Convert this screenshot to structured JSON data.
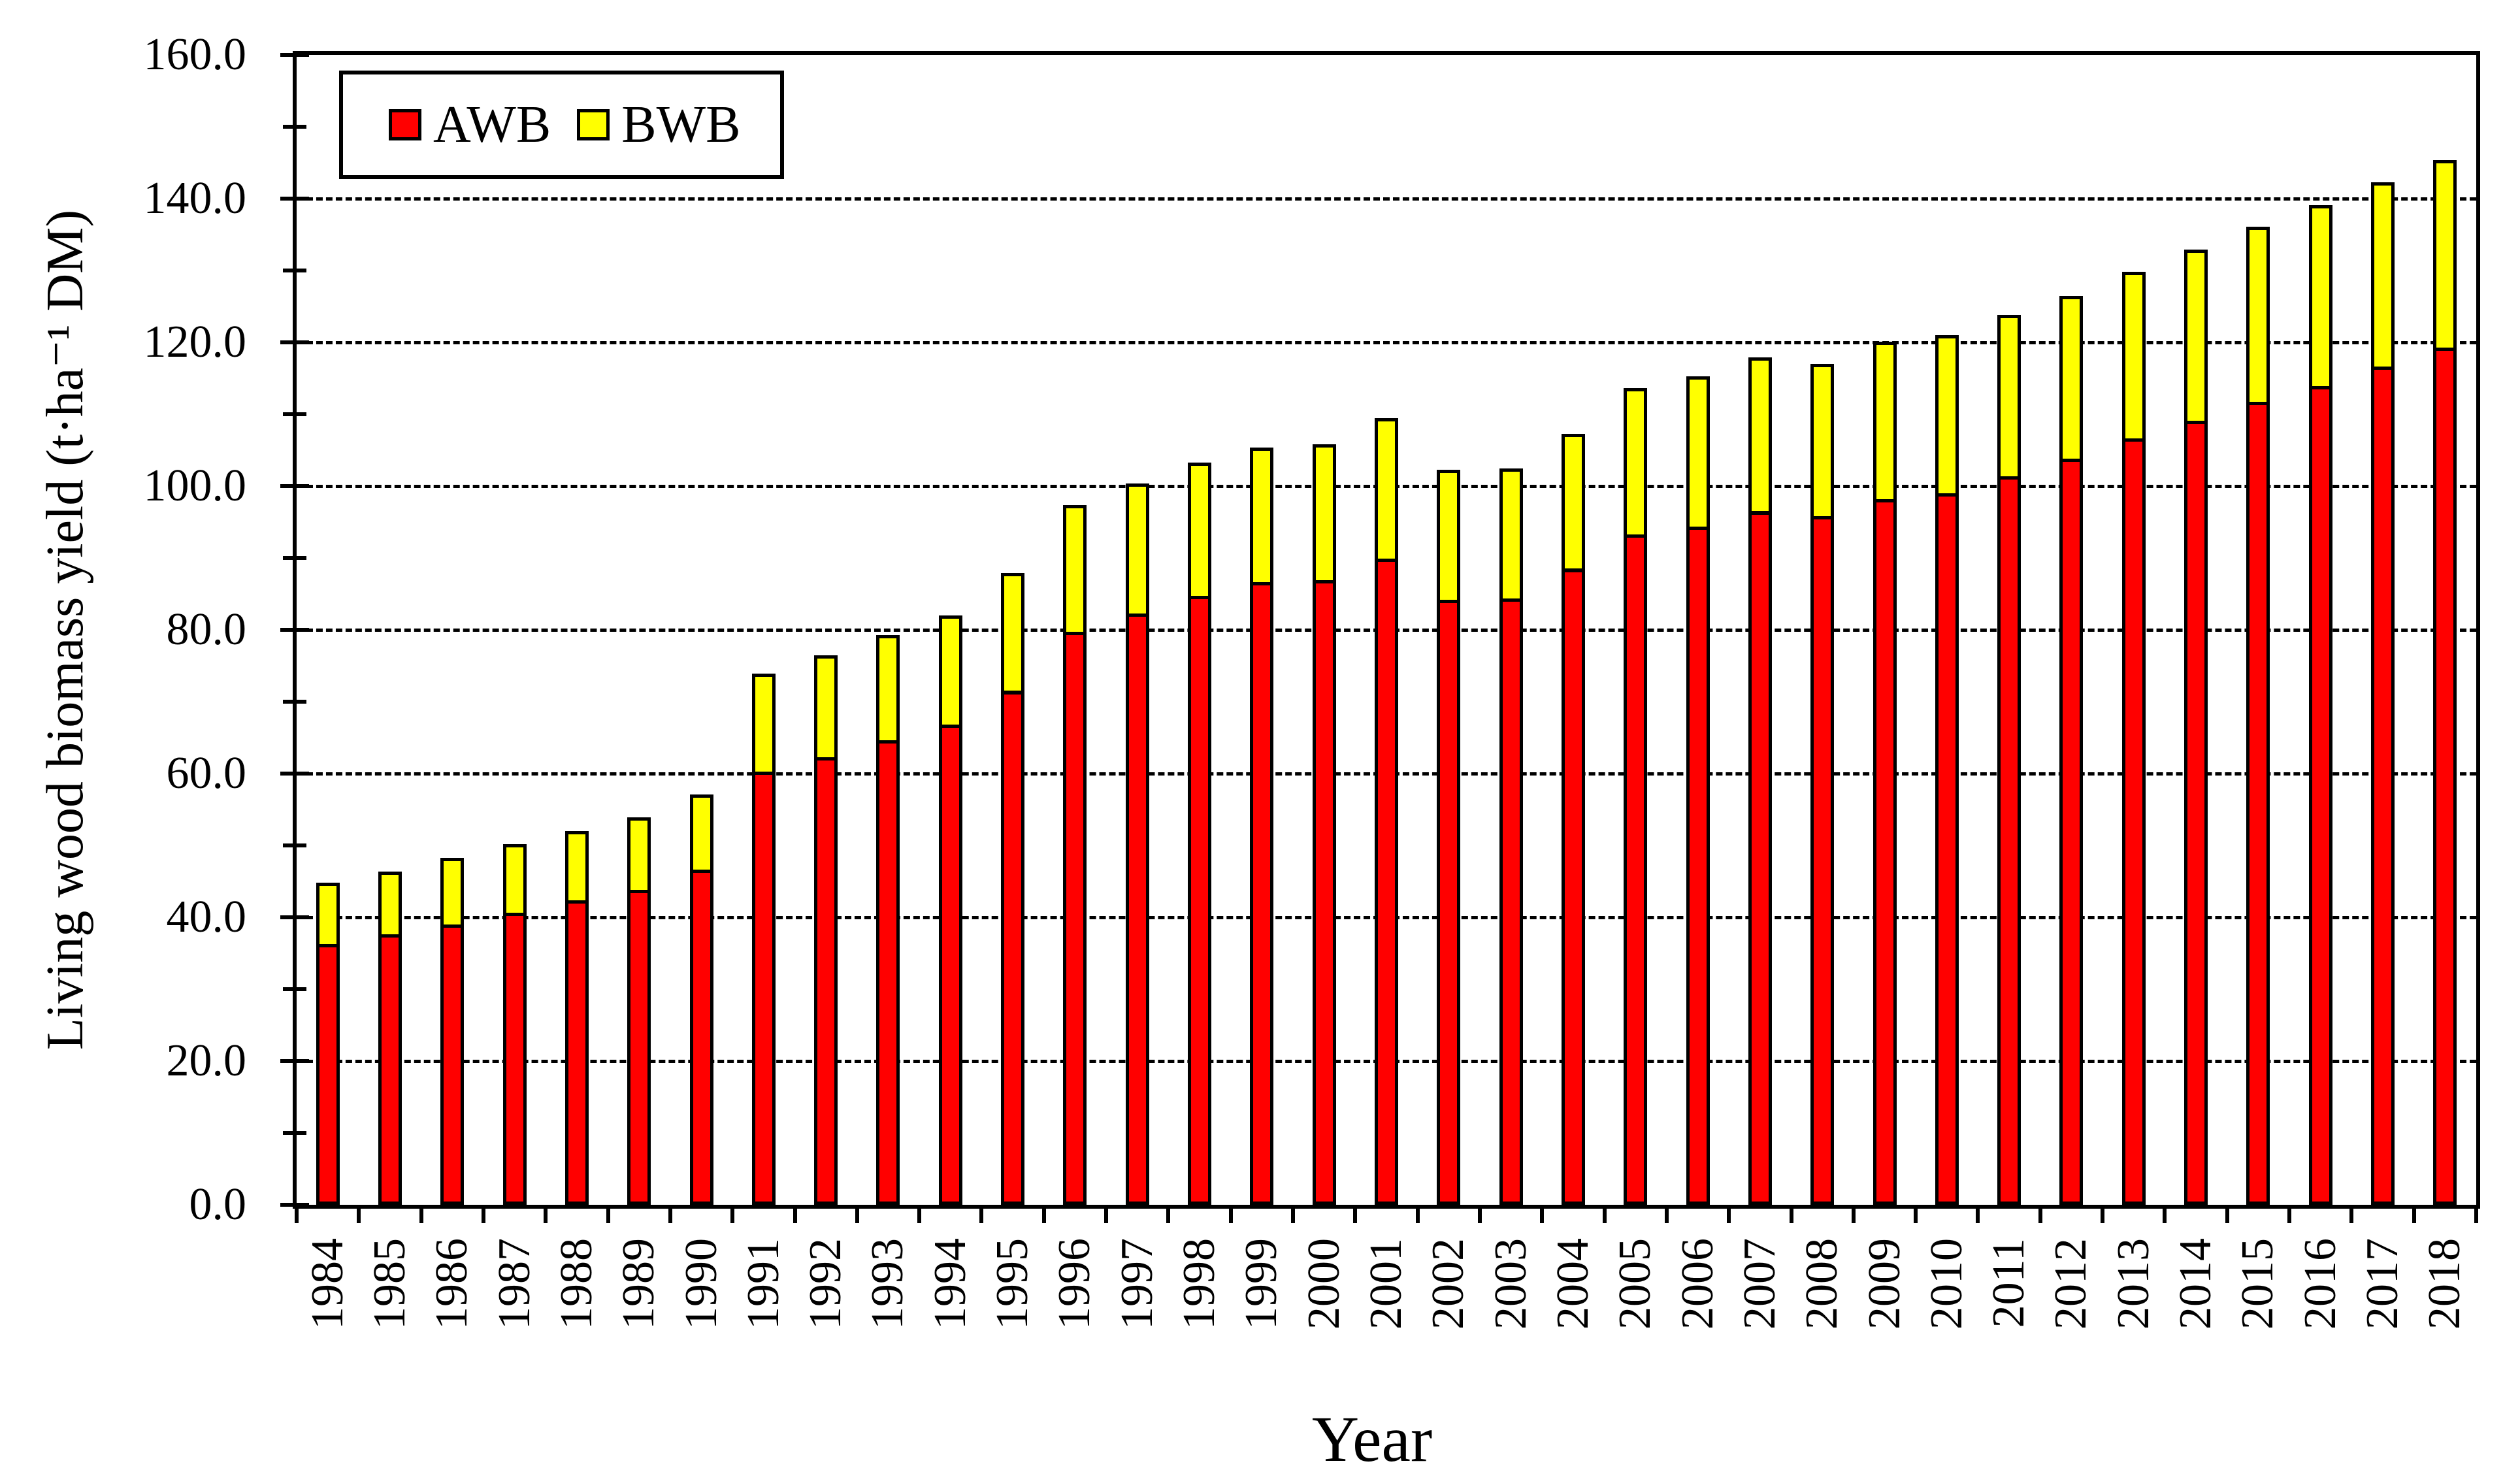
{
  "figure": {
    "background": "#ffffff",
    "frame_color": "#000000"
  },
  "chart_data": {
    "type": "bar",
    "stacked": true,
    "title": "",
    "xlabel": "Year",
    "ylabel": "Living wood biomass yield (t·ha⁻¹ DM)",
    "categories": [
      "1984",
      "1985",
      "1986",
      "1987",
      "1988",
      "1989",
      "1990",
      "1991",
      "1992",
      "1993",
      "1994",
      "1995",
      "1996",
      "1997",
      "1998",
      "1999",
      "2000",
      "2001",
      "2002",
      "2003",
      "2004",
      "2005",
      "2006",
      "2007",
      "2008",
      "2009",
      "2010",
      "2011",
      "2012",
      "2013",
      "2014",
      "2015",
      "2016",
      "2017",
      "2018"
    ],
    "series": [
      {
        "name": "AWB",
        "color": "#FF0000",
        "values": [
          36.3,
          37.6,
          39.0,
          40.6,
          42.4,
          43.8,
          46.6,
          60.3,
          62.3,
          64.6,
          66.8,
          71.5,
          79.7,
          82.3,
          84.7,
          86.6,
          86.9,
          89.9,
          84.2,
          84.4,
          88.5,
          93.3,
          94.4,
          96.5,
          95.8,
          98.2,
          99.0,
          101.4,
          103.8,
          106.6,
          109.1,
          111.7,
          113.9,
          116.6,
          119.3
        ]
      },
      {
        "name": "BWB",
        "color": "#FFFF00",
        "values": [
          8.5,
          8.8,
          9.3,
          9.6,
          9.6,
          10.1,
          10.5,
          13.6,
          14.2,
          14.7,
          15.2,
          16.4,
          17.7,
          18.1,
          18.6,
          18.8,
          18.9,
          19.6,
          18.1,
          18.1,
          18.8,
          20.3,
          20.9,
          21.4,
          21.2,
          21.9,
          22.0,
          22.4,
          22.7,
          23.2,
          23.8,
          24.4,
          25.2,
          25.7,
          26.1
        ]
      }
    ],
    "stack_totals": [
      44.8,
      46.4,
      48.3,
      50.2,
      52.0,
      53.9,
      57.1,
      73.9,
      76.5,
      79.3,
      82.0,
      87.9,
      97.4,
      100.4,
      103.3,
      105.4,
      105.8,
      109.5,
      102.3,
      102.5,
      107.3,
      113.6,
      115.3,
      117.9,
      117.0,
      120.1,
      121.0,
      123.8,
      126.5,
      129.8,
      132.9,
      136.1,
      139.1,
      142.3,
      145.4
    ],
    "ylim": [
      0,
      160
    ],
    "y_major_tick_step": 20,
    "y_minor_tick_step": 10,
    "y_tick_labels": [
      "0.0",
      "20.0",
      "40.0",
      "60.0",
      "80.0",
      "100.0",
      "120.0",
      "140.0",
      "160.0"
    ],
    "y_tick_decimals": 1,
    "grid": "horizontal dashed lines at major ticks",
    "grid_color": "#000000",
    "axis_color": "#000000",
    "legend_position": "top-left inside plot",
    "x_tick_label_rotation": 90
  }
}
